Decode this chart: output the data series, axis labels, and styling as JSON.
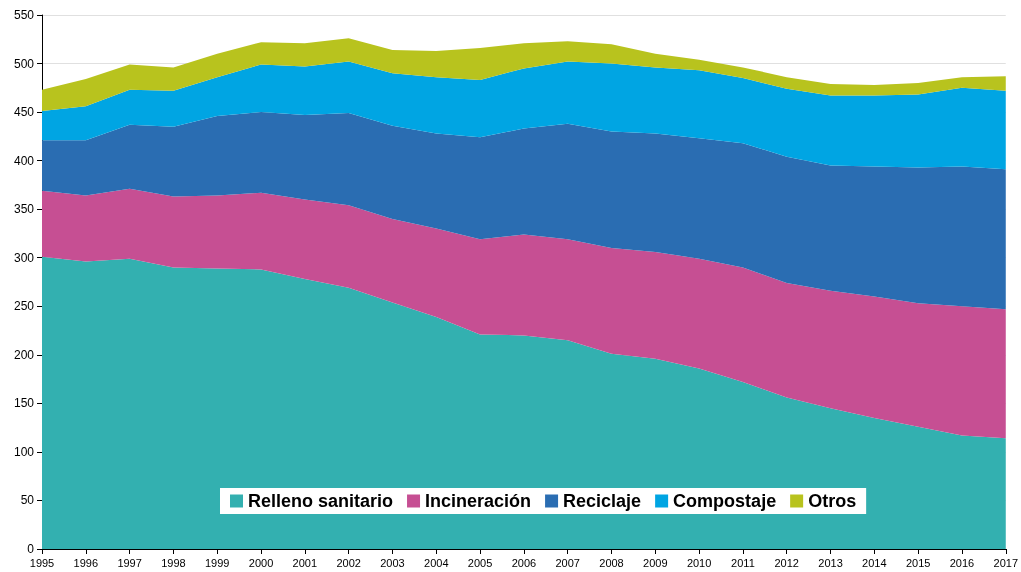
{
  "chart_data": {
    "type": "area",
    "stacked": true,
    "categories": [
      "1995",
      "1996",
      "1997",
      "1998",
      "1999",
      "2000",
      "2001",
      "2002",
      "2003",
      "2004",
      "2005",
      "2006",
      "2007",
      "2008",
      "2009",
      "2010",
      "2011",
      "2012",
      "2013",
      "2014",
      "2015",
      "2016",
      "2017"
    ],
    "series": [
      {
        "name": "Relleno sanitario",
        "color": "#33b0b0",
        "values": [
          301,
          296,
          299,
          290,
          289,
          288,
          278,
          269,
          254,
          239,
          221,
          220,
          215,
          201,
          196,
          186,
          172,
          156,
          145,
          135,
          126,
          117,
          114
        ]
      },
      {
        "name": "Incineración",
        "color": "#c64f93",
        "values": [
          68,
          68,
          72,
          73,
          75,
          79,
          82,
          85,
          86,
          91,
          98,
          104,
          104,
          109,
          110,
          113,
          118,
          118,
          121,
          125,
          127,
          133,
          133
        ]
      },
      {
        "name": "Reciclaje",
        "color": "#2a6db2",
        "values": [
          52,
          57,
          66,
          72,
          82,
          83,
          87,
          95,
          96,
          98,
          105,
          109,
          119,
          120,
          122,
          124,
          128,
          130,
          129,
          134,
          140,
          144,
          144
        ]
      },
      {
        "name": "Compostaje",
        "color": "#00a5e3",
        "values": [
          30,
          35,
          36,
          37,
          40,
          49,
          50,
          53,
          54,
          58,
          59,
          62,
          64,
          70,
          68,
          70,
          67,
          70,
          72,
          73,
          75,
          81,
          81
        ]
      },
      {
        "name": "Otros",
        "color": "#b8c31e",
        "values": [
          22,
          28,
          26,
          24,
          24,
          23,
          24,
          24,
          24,
          27,
          33,
          26,
          21,
          20,
          14,
          11,
          11,
          12,
          12,
          11,
          12,
          11,
          15
        ]
      }
    ],
    "ylim": [
      0,
      550
    ],
    "yticks": [
      0,
      50,
      100,
      150,
      200,
      250,
      300,
      350,
      400,
      450,
      500,
      550
    ],
    "grid": "y",
    "legend": "bottom"
  }
}
